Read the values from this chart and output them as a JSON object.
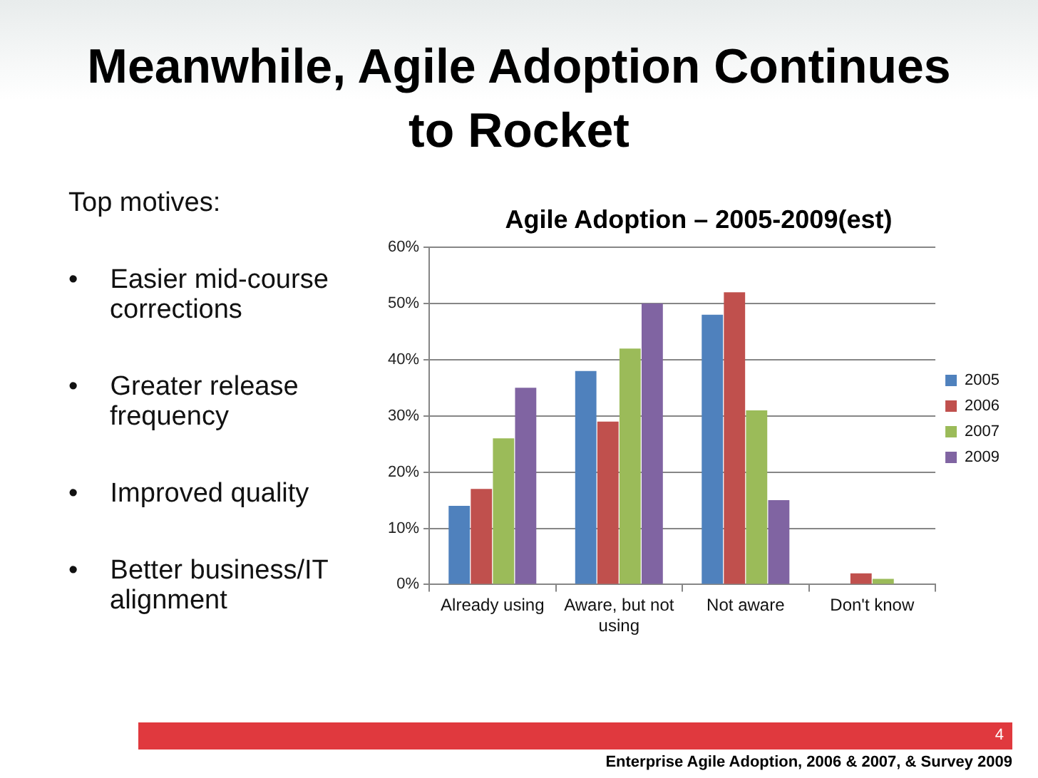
{
  "chart_data": {
    "type": "bar",
    "title": "Meanwhile, Agile Adoption Continues to Rocket",
    "subtitle": "Agile Adoption – 2005-2009(est)",
    "categories": [
      "Already using",
      "Aware, but not using",
      "Not aware",
      "Don't know"
    ],
    "series": [
      {
        "name": "2005",
        "color": "#4f81bd",
        "values": [
          14,
          38,
          48,
          null
        ]
      },
      {
        "name": "2006",
        "color": "#c0504d",
        "values": [
          17,
          29,
          52,
          2
        ]
      },
      {
        "name": "2007",
        "color": "#9bbb59",
        "values": [
          26,
          42,
          31,
          1
        ]
      },
      {
        "name": "2009",
        "color": "#8064a2",
        "values": [
          35,
          50,
          15,
          null
        ]
      }
    ],
    "ylim": [
      0,
      60
    ],
    "yticks": [
      {
        "value": 0,
        "label": "0%"
      },
      {
        "value": 10,
        "label": "10%"
      },
      {
        "value": 20,
        "label": "20%"
      },
      {
        "value": 30,
        "label": "30%"
      },
      {
        "value": 40,
        "label": "40%"
      },
      {
        "value": 50,
        "label": "50%"
      },
      {
        "value": 60,
        "label": "60%"
      }
    ],
    "grid": "y",
    "legend": "right",
    "annotations": [
      "Top motives:",
      "• Easier mid-course corrections",
      "• Greater release frequency",
      "• Improved quality",
      "• Better business/IT alignment",
      "Enterprise Agile Adoption, 2006 & 2007, & Survey 2009",
      "4"
    ]
  }
}
